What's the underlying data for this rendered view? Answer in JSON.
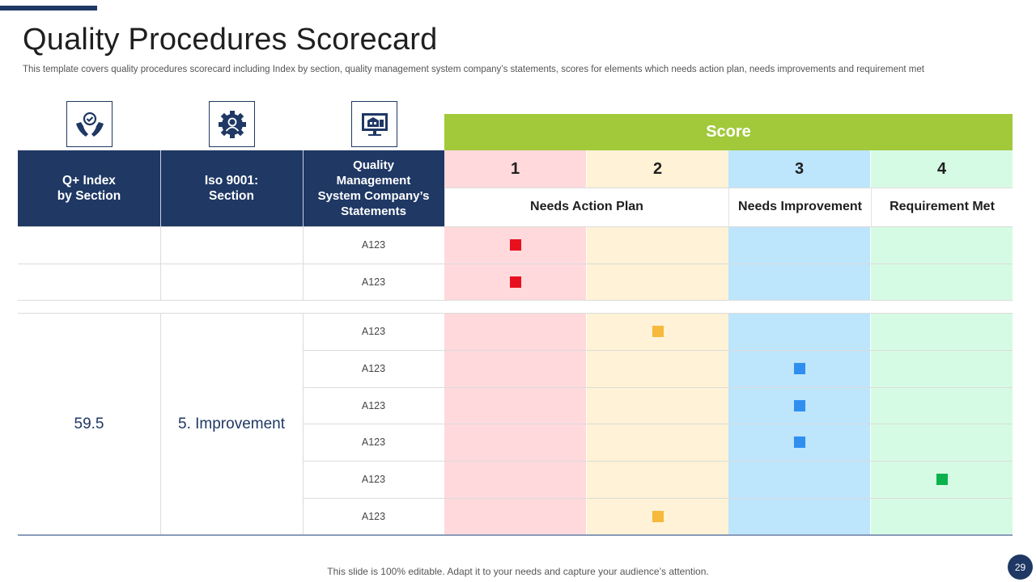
{
  "title": "Quality Procedures Scorecard",
  "subtitle": "This template covers quality procedures scorecard including Index by section, quality management system company’s statements, scores for elements which needs action plan, needs improvements and requirement met",
  "icons": [
    "hands-check-icon",
    "gear-person-icon",
    "monitor-building-icon"
  ],
  "score_title": "Score",
  "headers": {
    "index": "Q+ Index\nby Section",
    "iso": "Iso 9001:\nSection",
    "statements": "Quality\nManagement\nSystem Company’s\nStatements"
  },
  "score_columns": [
    {
      "num": "1",
      "color": "#ffd9dc"
    },
    {
      "num": "2",
      "color": "#fff2d6"
    },
    {
      "num": "3",
      "color": "#bde5fc"
    },
    {
      "num": "4",
      "color": "#d6fbe4"
    }
  ],
  "score_labels": {
    "needs_action": "Needs Action Plan",
    "needs_improvement": "Needs Improvement",
    "requirement_met": "Requirement Met"
  },
  "group1": {
    "rows": [
      {
        "statement": "A123",
        "score": 1
      },
      {
        "statement": "A123",
        "score": 1
      }
    ]
  },
  "group2": {
    "index": "59.5",
    "section": "5. Improvement",
    "rows": [
      {
        "statement": "A123",
        "score": 2
      },
      {
        "statement": "A123",
        "score": 3
      },
      {
        "statement": "A123",
        "score": 3
      },
      {
        "statement": "A123",
        "score": 3
      },
      {
        "statement": "A123",
        "score": 4
      },
      {
        "statement": "A123",
        "score": 2
      }
    ]
  },
  "marker_colors": {
    "1": "#e8101e",
    "2": "#f6b93b",
    "3": "#2e8ff0",
    "4": "#0bb24c"
  },
  "footer": "This slide is 100% editable. Adapt it to your needs and capture your audience’s attention.",
  "page_number": "29"
}
